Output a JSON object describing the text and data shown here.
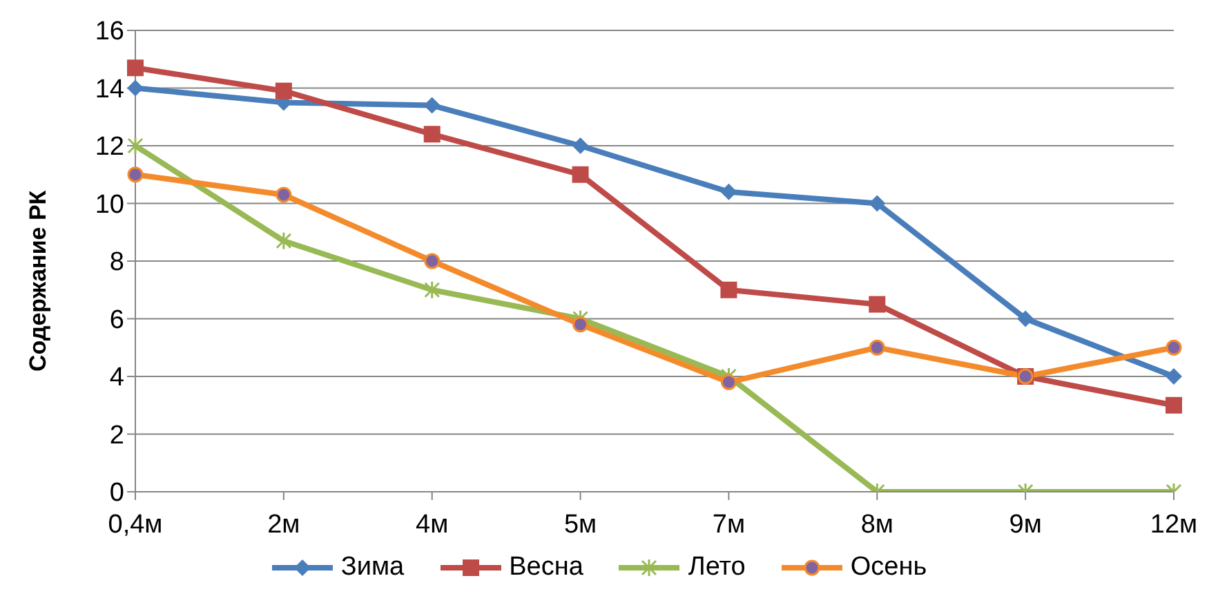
{
  "chart_data": {
    "type": "line",
    "ylabel": "Содержание РК",
    "categories": [
      "0,4м",
      "2м",
      "4м",
      "5м",
      "7м",
      "8м",
      "9м",
      "12м"
    ],
    "series": [
      {
        "name": "Зима",
        "color": "#4a7ebb",
        "marker": "diamond",
        "values": [
          14,
          13.5,
          13.4,
          12,
          10.4,
          10,
          6,
          4
        ]
      },
      {
        "name": "Весна",
        "color": "#be4b48",
        "marker": "square",
        "values": [
          14.7,
          13.9,
          12.4,
          11,
          7,
          6.5,
          4,
          3
        ]
      },
      {
        "name": "Лето",
        "color": "#98b954",
        "marker": "cross",
        "values": [
          12,
          8.7,
          7,
          6,
          4,
          0,
          0,
          0
        ]
      },
      {
        "name": "Осень",
        "color": "#f38b2c",
        "marker": "circle",
        "values": [
          11,
          10.3,
          8,
          5.8,
          3.8,
          5,
          4,
          5
        ]
      }
    ],
    "ylim": [
      0,
      16
    ],
    "yticks": [
      0,
      2,
      4,
      6,
      8,
      10,
      12,
      14,
      16
    ],
    "grid": "y",
    "legend": "bottom"
  }
}
